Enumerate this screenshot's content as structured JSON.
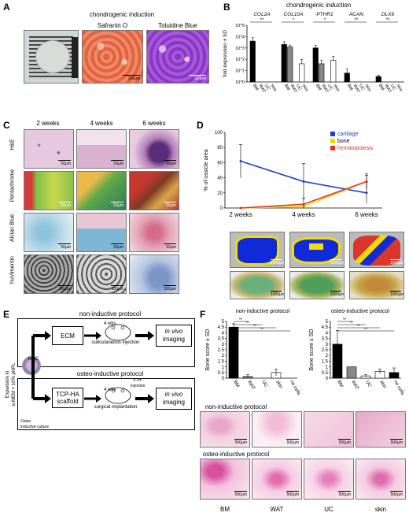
{
  "A": {
    "label": "A",
    "title": "chondrogenic induction",
    "stains": [
      "Safranin O",
      "Toluidine Blue"
    ],
    "scale": "100µm"
  },
  "B": {
    "label": "B",
    "title": "chondrogenic induction",
    "genes": [
      "COL2A",
      "COL10A",
      "PTHR1",
      "ACAN",
      "DLX6"
    ],
    "ylabel": "fold expression ± SD",
    "sig": "**",
    "sig_single": "*",
    "sources": [
      "BM",
      "WAT",
      "UC",
      "skin"
    ]
  },
  "C": {
    "label": "C",
    "timepoints": [
      "2 weeks",
      "4 weeks",
      "6 weeks"
    ],
    "rows": [
      "H&E",
      "Pentachrome",
      "Alcian Blue",
      "huVimentin"
    ],
    "scale": "50µm",
    "scale_big": "100µm"
  },
  "D": {
    "label": "D",
    "timepoints": [
      "2 weeks",
      "4 weeks",
      "6 weeks"
    ],
    "scale": "1000µm"
  },
  "E": {
    "label": "E",
    "protocol_top": "non-inductive protocol",
    "protocol_bottom": "osteo-inductive protocol",
    "ecm": "ECM",
    "scaffold_line1": "TCP-HA",
    "scaffold_line2": "scaffold",
    "weeks": "4 wks",
    "subcutaneous": "subcutaneous injection",
    "surgical": "surgical implantation",
    "pth": "PTH-",
    "injection": "injection",
    "invivo_1": "in vivo",
    "invivo_2": "imaging",
    "msc": "MSC",
    "expansion_line1": "Expansion in",
    "expansion_line2": "α-MEM + 10% pHPL",
    "osteo_line1": "Osteo",
    "osteo_line2": "inductive culture"
  },
  "F": {
    "label": "F",
    "left_title": "non-inductive protocol",
    "right_title": "osteo-inductive protocol",
    "ylabel": "Bone score ± SD",
    "sig": "**",
    "sources": [
      "BM",
      "WAT",
      "UC",
      "skin",
      "no cells"
    ],
    "row1_title": "non-inductive protocol",
    "row2_title": "osteo-inductive protocol",
    "bottom_labels": [
      "BM",
      "WAT",
      "UC",
      "skin"
    ],
    "scale": "500µm"
  },
  "chart_data": [
    {
      "type": "bar",
      "panel": "B",
      "title": "chondrogenic induction",
      "ylabel": "fold expression ± SD",
      "yscale": "log",
      "ylim": [
        1,
        100000
      ],
      "yticks": [
        "10^5",
        "10^4",
        "10^3",
        "10^2",
        "10^1",
        "10^0"
      ],
      "groups": [
        {
          "name": "COL2A",
          "categories": [
            "BM",
            "WAT",
            "UC",
            "skin"
          ],
          "values": [
            4000,
            1,
            1,
            1
          ],
          "errors": [
            4000,
            0,
            0,
            0
          ]
        },
        {
          "name": "COL10A",
          "categories": [
            "BM",
            "WAT",
            "UC",
            "skin"
          ],
          "values": [
            2000,
            1200,
            1,
            40
          ],
          "errors": [
            1500,
            600,
            0,
            60
          ]
        },
        {
          "name": "PTHR1",
          "categories": [
            "BM",
            "WAT",
            "UC",
            "skin"
          ],
          "values": [
            1000,
            40,
            1,
            80
          ],
          "errors": [
            700,
            40,
            0,
            100
          ]
        },
        {
          "name": "ACAN",
          "categories": [
            "BM",
            "WAT",
            "UC",
            "skin"
          ],
          "values": [
            6,
            1,
            1,
            1
          ],
          "errors": [
            8,
            0,
            0,
            0
          ]
        },
        {
          "name": "DLX6",
          "categories": [
            "BM",
            "WAT",
            "UC",
            "skin"
          ],
          "values": [
            3,
            1,
            1,
            1
          ],
          "errors": [
            1,
            0,
            0,
            0
          ]
        }
      ]
    },
    {
      "type": "line",
      "panel": "D",
      "ylabel": "% of ossicle area",
      "ylim": [
        0,
        100
      ],
      "yticks": [
        0,
        20,
        40,
        60,
        80,
        100
      ],
      "categories": [
        "2 weeks",
        "4 weeks",
        "6 weeks"
      ],
      "series": [
        {
          "name": "cartilage",
          "color": "#1f3fbf",
          "values": [
            62,
            35,
            20
          ],
          "errors": [
            22,
            24,
            14
          ]
        },
        {
          "name": "bone",
          "color": "#f0d800",
          "values": [
            0,
            2,
            35
          ],
          "errors": [
            0,
            2,
            8
          ]
        },
        {
          "name": "hematopoiesis",
          "color": "#d8372a",
          "values": [
            0,
            5,
            35
          ],
          "errors": [
            0,
            8,
            10
          ]
        }
      ]
    },
    {
      "type": "bar",
      "panel": "F-left",
      "title": "non-inductive protocol",
      "ylabel": "Bone score ± SD",
      "ylim": [
        0,
        5
      ],
      "yticks": [
        0,
        0.5,
        1,
        1.5,
        2,
        2.5,
        3,
        3.5,
        4,
        4.5,
        5
      ],
      "categories": [
        "BM",
        "WAT",
        "UC",
        "skin",
        "no cells"
      ],
      "values": [
        4.5,
        0.15,
        0,
        0.5,
        0
      ],
      "errors": [
        0.3,
        0.15,
        0,
        0.3,
        0
      ]
    },
    {
      "type": "bar",
      "panel": "F-right",
      "title": "osteo-inductive protocol",
      "ylabel": "Bone score ± SD",
      "ylim": [
        0,
        5
      ],
      "yticks": [
        0,
        0.5,
        1,
        1.5,
        2,
        2.5,
        3,
        3.5,
        4,
        4.5,
        5
      ],
      "categories": [
        "BM",
        "WAT",
        "UC",
        "skin",
        "no cells"
      ],
      "values": [
        3.0,
        1.0,
        0.2,
        0.6,
        0.5
      ],
      "errors": [
        1.2,
        0,
        0.1,
        0.2,
        0.4
      ]
    }
  ]
}
